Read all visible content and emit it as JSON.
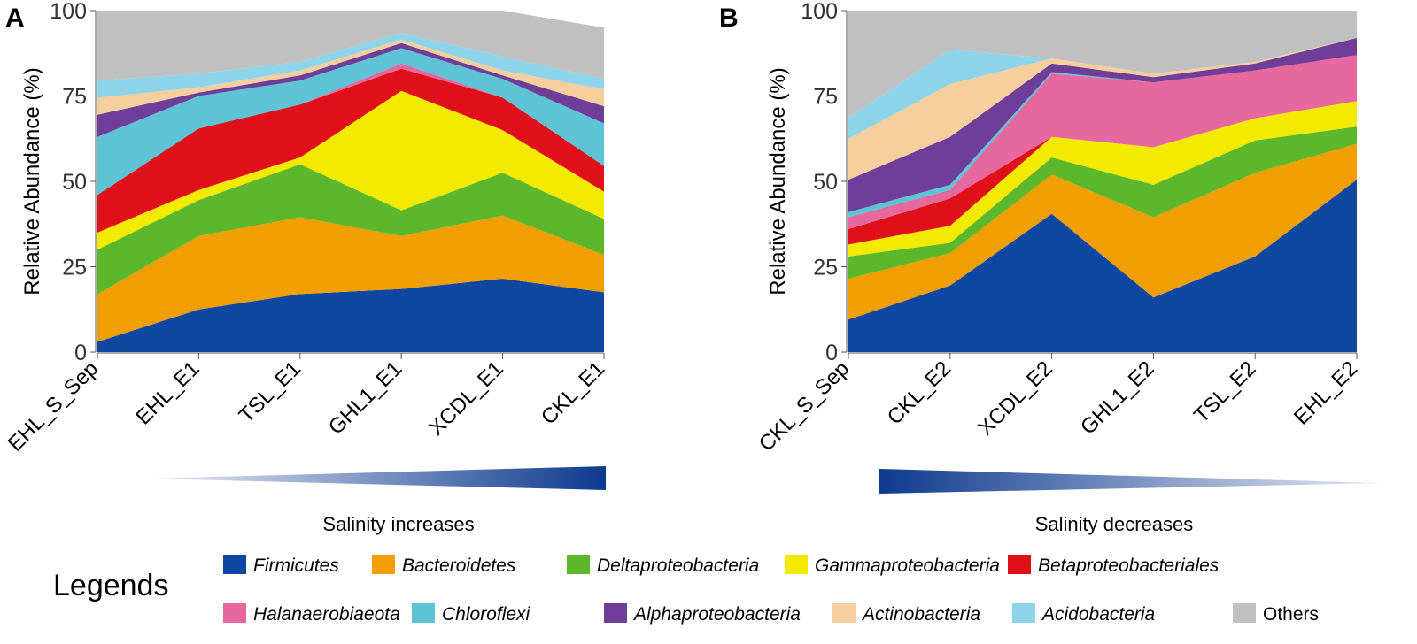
{
  "chart_data": [
    {
      "panel": "A",
      "type": "area",
      "stacked": true,
      "ylabel": "Relative Abundance (%)",
      "ylim": [
        0,
        100
      ],
      "yticks": [
        0,
        25,
        50,
        75,
        100
      ],
      "categories": [
        "EHL_S_Sep",
        "EHL_E1",
        "TSL_E1",
        "GHL1_E1",
        "XCDL_E1",
        "CKL_E1"
      ],
      "gradient_label": "Salinity increases",
      "series": [
        {
          "name": "Firmicutes",
          "values": [
            3,
            12.5,
            17,
            18.5,
            21.5,
            17.5
          ]
        },
        {
          "name": "Bacteroidetes",
          "values": [
            14,
            21.5,
            22.5,
            15.5,
            18.5,
            11
          ]
        },
        {
          "name": "Deltaproteobacteria",
          "values": [
            13,
            10.5,
            15.5,
            7.5,
            12.5,
            10.5
          ]
        },
        {
          "name": "Gammaproteobacteria",
          "values": [
            5,
            3,
            2,
            35,
            12.5,
            8
          ]
        },
        {
          "name": "Betaproteobacteriales",
          "values": [
            11,
            18,
            15.5,
            6.5,
            9.5,
            7.5
          ]
        },
        {
          "name": "Halanaerobiaeota",
          "values": [
            0,
            0,
            0,
            1.5,
            0,
            0
          ]
        },
        {
          "name": "Chloroflexi",
          "values": [
            17,
            9.5,
            7,
            4.5,
            5.5,
            12.5
          ]
        },
        {
          "name": "Alphaproteobacteria",
          "values": [
            6.5,
            1,
            1.5,
            1.5,
            1,
            5
          ]
        },
        {
          "name": "Actinobacteria",
          "values": [
            5,
            1.5,
            1.5,
            1,
            1.5,
            5
          ]
        },
        {
          "name": "Acidobacteria",
          "values": [
            5,
            4,
            2.5,
            2,
            4,
            3
          ]
        },
        {
          "name": "Others",
          "values": [
            20.5,
            18.5,
            15,
            6.5,
            13.5,
            15
          ]
        }
      ]
    },
    {
      "panel": "B",
      "type": "area",
      "stacked": true,
      "ylabel": "Relative Abundance (%)",
      "ylim": [
        0,
        100
      ],
      "yticks": [
        0,
        25,
        50,
        75,
        100
      ],
      "categories": [
        "CKL_S_Sep",
        "CKL_E2",
        "XCDL_E2",
        "GHL1_E2",
        "TSL_E2",
        "EHL_E2"
      ],
      "gradient_label": "Salinity decreases",
      "series": [
        {
          "name": "Firmicutes",
          "values": [
            9.5,
            19.5,
            40.5,
            16,
            28,
            50.5
          ]
        },
        {
          "name": "Bacteroidetes",
          "values": [
            12,
            9.5,
            11.5,
            23.5,
            24.5,
            10.5
          ]
        },
        {
          "name": "Deltaproteobacteria",
          "values": [
            6.5,
            3,
            5,
            9.5,
            9.5,
            5
          ]
        },
        {
          "name": "Gammaproteobacteria",
          "values": [
            3.5,
            5,
            6,
            11,
            6.5,
            7.5
          ]
        },
        {
          "name": "Betaproteobacteriales",
          "values": [
            4.5,
            8,
            0,
            0,
            0,
            0
          ]
        },
        {
          "name": "Halanaerobiaeota",
          "values": [
            3.5,
            2.5,
            18.5,
            19,
            14,
            13.5
          ]
        },
        {
          "name": "Chloroflexi",
          "values": [
            1.5,
            1.5,
            0.5,
            0,
            0,
            0
          ]
        },
        {
          "name": "Alphaproteobacteria",
          "values": [
            9.5,
            14,
            2.5,
            1.5,
            2,
            5
          ]
        },
        {
          "name": "Actinobacteria",
          "values": [
            12,
            15.5,
            1.5,
            1,
            0.5,
            0
          ]
        },
        {
          "name": "Acidobacteria",
          "values": [
            6,
            10,
            0,
            0,
            0,
            0
          ]
        },
        {
          "name": "Others",
          "values": [
            31.5,
            11.5,
            14,
            18.5,
            15,
            8
          ]
        }
      ]
    }
  ],
  "legend": {
    "title": "Legends",
    "items": [
      {
        "name": "Firmicutes",
        "color": "#0d47a1",
        "italic": true
      },
      {
        "name": "Bacteroidetes",
        "color": "#f29f05",
        "italic": true
      },
      {
        "name": "Deltaproteobacteria",
        "color": "#5cb82a",
        "italic": true
      },
      {
        "name": "Gammaproteobacteria",
        "color": "#f4ea00",
        "italic": true
      },
      {
        "name": "Betaproteobacteriales",
        "color": "#e0101a",
        "italic": true
      },
      {
        "name": "Halanaerobiaeota",
        "color": "#e6689e",
        "italic": true
      },
      {
        "name": "Chloroflexi",
        "color": "#5fc3d6",
        "italic": true
      },
      {
        "name": "Alphaproteobacteria",
        "color": "#6f3e99",
        "italic": true
      },
      {
        "name": "Actinobacteria",
        "color": "#f7cf9e",
        "italic": true
      },
      {
        "name": "Acidobacteria",
        "color": "#8dd3ea",
        "italic": true
      },
      {
        "name": "Others",
        "color": "#c0c0c0",
        "italic": false
      }
    ]
  },
  "gradient_colors": {
    "strong": "#0d3a8e",
    "faint": "#e8eaf4"
  }
}
